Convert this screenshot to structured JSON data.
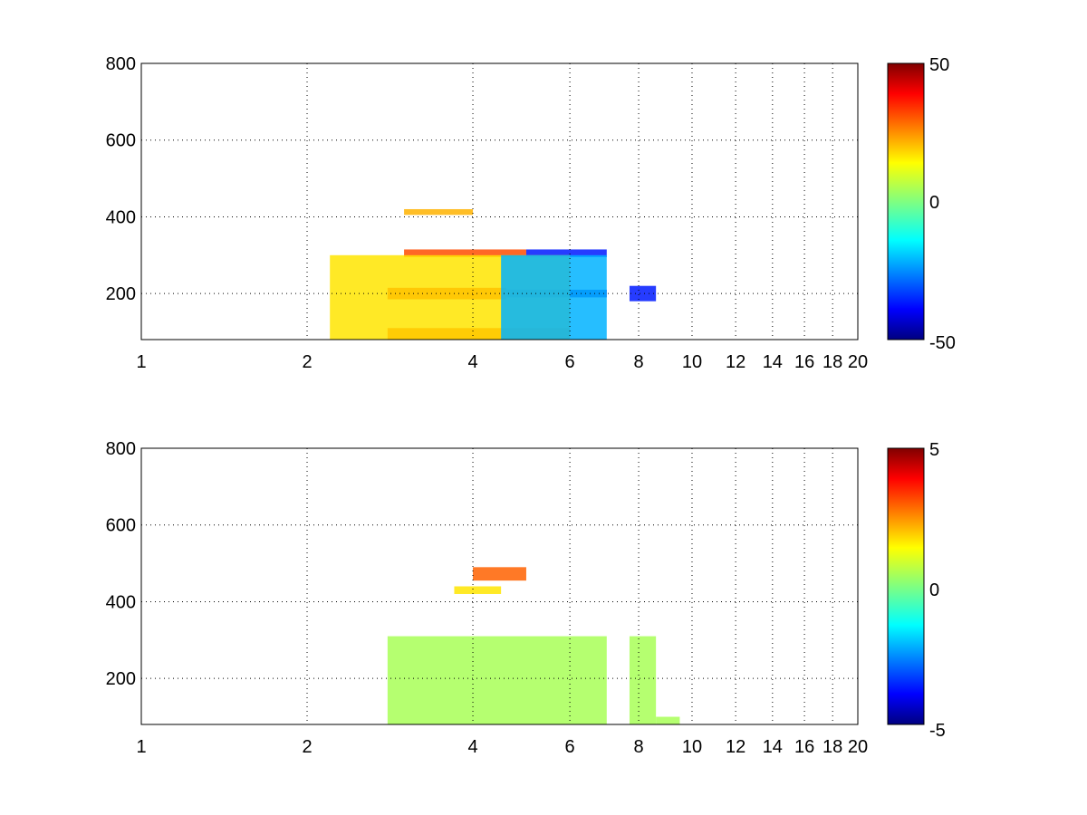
{
  "chart_data": [
    {
      "type": "heatmap",
      "title": "",
      "xlabel": "",
      "ylabel": "",
      "xlim": [
        1,
        20
      ],
      "ylim": [
        80,
        800
      ],
      "x_scale": "log",
      "x_ticks": [
        1,
        2,
        4,
        6,
        8,
        10,
        12,
        14,
        16,
        18,
        20
      ],
      "x_tick_labels": [
        "1",
        "2",
        "4",
        "6",
        "8",
        "10",
        "12",
        "14",
        "16",
        "18",
        "20"
      ],
      "y_ticks": [
        200,
        400,
        600,
        800
      ],
      "y_tick_labels": [
        "200",
        "400",
        "600",
        "800"
      ],
      "grid": true,
      "colormap": "jet",
      "clim": [
        -50,
        50
      ],
      "colorbar_ticks": [
        -50,
        0,
        50
      ],
      "colorbar_tick_labels": [
        "-50",
        "0",
        "50"
      ],
      "regions": [
        {
          "x": [
            2.8,
            6.0
          ],
          "y": [
            80,
            110
          ],
          "value": 35
        },
        {
          "x": [
            2.8,
            4.6
          ],
          "y": [
            185,
            215
          ],
          "value": 38
        },
        {
          "x": [
            4.6,
            7.0
          ],
          "y": [
            190,
            210
          ],
          "value": -40
        },
        {
          "x": [
            3.0,
            5.0
          ],
          "y": [
            295,
            315
          ],
          "value": 30
        },
        {
          "x": [
            5.0,
            7.0
          ],
          "y": [
            295,
            315
          ],
          "value": -35
        },
        {
          "x": [
            7.7,
            8.6
          ],
          "y": [
            180,
            220
          ],
          "value": -35
        },
        {
          "x": [
            3.0,
            4.0
          ],
          "y": [
            405,
            420
          ],
          "value": 20
        },
        {
          "x": [
            2.2,
            6.0
          ],
          "y": [
            80,
            300
          ],
          "value": 15
        },
        {
          "x": [
            4.5,
            7.0
          ],
          "y": [
            80,
            300
          ],
          "value": -20
        }
      ]
    },
    {
      "type": "heatmap",
      "title": "",
      "xlabel": "",
      "ylabel": "",
      "xlim": [
        1,
        20
      ],
      "ylim": [
        80,
        800
      ],
      "x_scale": "log",
      "x_ticks": [
        1,
        2,
        4,
        6,
        8,
        10,
        12,
        14,
        16,
        18,
        20
      ],
      "x_tick_labels": [
        "1",
        "2",
        "4",
        "6",
        "8",
        "10",
        "12",
        "14",
        "16",
        "18",
        "20"
      ],
      "y_ticks": [
        200,
        400,
        600,
        800
      ],
      "y_tick_labels": [
        "200",
        "400",
        "600",
        "800"
      ],
      "grid": true,
      "colormap": "jet",
      "clim": [
        -5,
        5
      ],
      "colorbar_ticks": [
        -5,
        0,
        5
      ],
      "colorbar_tick_labels": [
        "-5",
        "0",
        "5"
      ],
      "regions": [
        {
          "x": [
            2.8,
            7.0
          ],
          "y": [
            80,
            310
          ],
          "value": 0.4
        },
        {
          "x": [
            7.7,
            8.6
          ],
          "y": [
            80,
            310
          ],
          "value": 0.4
        },
        {
          "x": [
            8.6,
            9.5
          ],
          "y": [
            80,
            100
          ],
          "value": 0.4
        },
        {
          "x": [
            4.0,
            5.0
          ],
          "y": [
            455,
            490
          ],
          "value": 2.8
        },
        {
          "x": [
            3.7,
            4.5
          ],
          "y": [
            420,
            440
          ],
          "value": 1.5
        }
      ]
    }
  ]
}
